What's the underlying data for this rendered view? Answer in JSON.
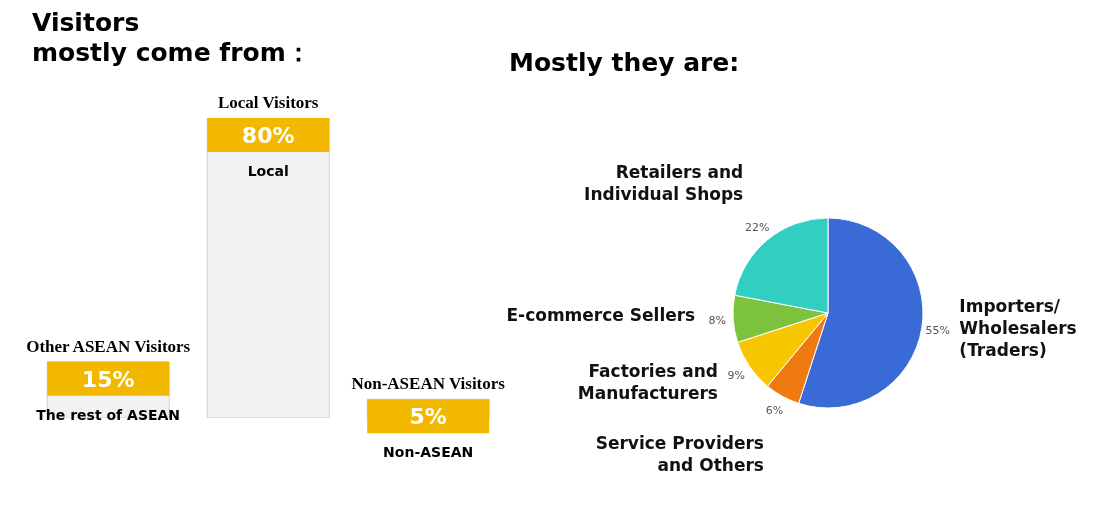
{
  "chart_data": [
    {
      "type": "bar",
      "title": "Visitors\nmostly come from：",
      "categories": [
        "Other ASEAN Visitors",
        "Local Visitors",
        "Non-ASEAN Visitors"
      ],
      "values": [
        15,
        80,
        5
      ],
      "colors": [
        "#f2f2f2",
        "#f2f2f2",
        "#f2f2f2"
      ],
      "value_labels": [
        "15%",
        "80%",
        "5%"
      ],
      "annotations": [
        "The rest of ASEAN",
        "Local",
        "Non-ASEAN"
      ]
    },
    {
      "type": "pie",
      "title": "Mostly they are:",
      "categories": [
        "Importers/\nWholesalers\n(Traders)",
        "Service Providers\nand Others",
        "Factories and\nManufacturers",
        "E-commerce Sellers",
        "Retailers and\nIndividual Shops"
      ],
      "values": [
        55,
        6,
        9,
        8,
        22
      ],
      "colors": [
        "#3a6ad6",
        "#f07a12",
        "#f7c600",
        "#7cc23c",
        "#30cfc2"
      ],
      "value_labels": [
        "55%",
        "6%",
        "9%",
        "8%",
        "22%"
      ]
    }
  ]
}
